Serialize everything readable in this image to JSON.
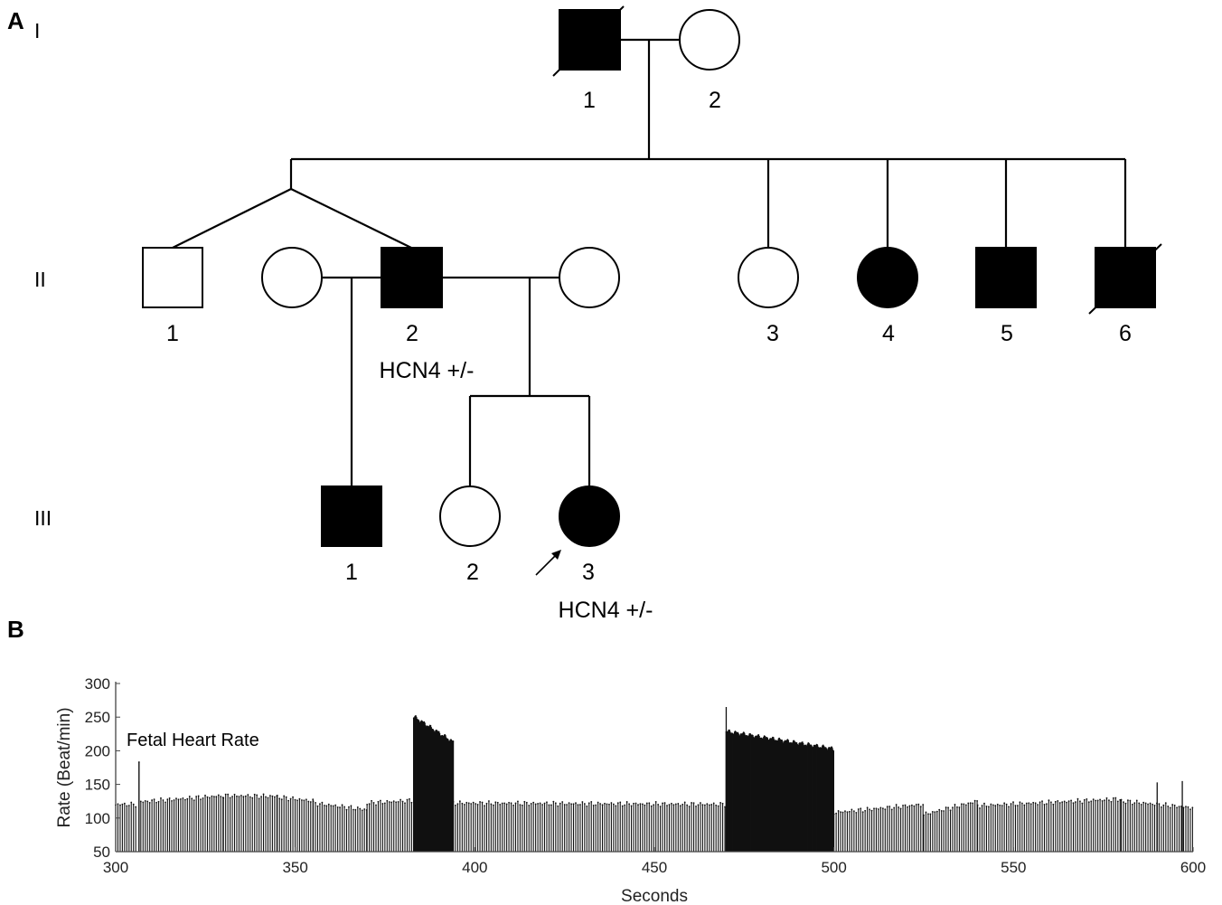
{
  "panels": {
    "a": "A",
    "b": "B"
  },
  "generations": [
    "I",
    "II",
    "III"
  ],
  "individuals": {
    "I1": {
      "label": "1",
      "sex": "male",
      "affected": true,
      "deceased": true
    },
    "I2": {
      "label": "2",
      "sex": "female",
      "affected": false,
      "deceased": false
    },
    "II1": {
      "label": "1",
      "sex": "male",
      "affected": false,
      "deceased": false
    },
    "IIspouse1": {
      "label": "",
      "sex": "female",
      "affected": false,
      "deceased": false
    },
    "II2": {
      "label": "2",
      "sex": "male",
      "affected": true,
      "deceased": false,
      "note": "HCN4 +/-"
    },
    "IIspouse2": {
      "label": "",
      "sex": "female",
      "affected": false,
      "deceased": false
    },
    "II3": {
      "label": "3",
      "sex": "female",
      "affected": false,
      "deceased": false
    },
    "II4": {
      "label": "4",
      "sex": "female",
      "affected": true,
      "deceased": false
    },
    "II5": {
      "label": "5",
      "sex": "male",
      "affected": true,
      "deceased": false
    },
    "II6": {
      "label": "6",
      "sex": "male",
      "affected": true,
      "deceased": true
    },
    "III1": {
      "label": "1",
      "sex": "male",
      "affected": true,
      "deceased": false
    },
    "III2": {
      "label": "2",
      "sex": "female",
      "affected": false,
      "deceased": false
    },
    "III3": {
      "label": "3",
      "sex": "female",
      "affected": true,
      "deceased": false,
      "proband": true,
      "note": "HCN4 +/-"
    }
  },
  "chart_data": {
    "type": "bar",
    "title": "Fetal Heart Rate",
    "xlabel": "Seconds",
    "ylabel": "Rate (Beat/min)",
    "xlim": [
      300,
      600
    ],
    "ylim": [
      50,
      300
    ],
    "xticks": [
      300,
      350,
      400,
      450,
      500,
      550,
      600
    ],
    "yticks": [
      50,
      100,
      150,
      200,
      250,
      300
    ],
    "series": [
      {
        "values_by_segment": [
          {
            "x": [
              300,
              306
            ],
            "y": [
              120,
              120
            ]
          },
          {
            "x": [
              306.5,
              306.5
            ],
            "y": [
              183,
              183
            ]
          },
          {
            "x": [
              307,
              315
            ],
            "y": [
              124,
              127
            ]
          },
          {
            "x": [
              315,
              330
            ],
            "y": [
              127,
              133
            ]
          },
          {
            "x": [
              330,
              345
            ],
            "y": [
              133,
              132
            ]
          },
          {
            "x": [
              345,
              355
            ],
            "y": [
              131,
              125
            ]
          },
          {
            "x": [
              355,
              370
            ],
            "y": [
              122,
              112
            ]
          },
          {
            "x": [
              370,
              383
            ],
            "y": [
              122,
              126
            ]
          },
          {
            "x": [
              383,
              394
            ],
            "y": [
              250,
              212
            ]
          },
          {
            "x": [
              394,
              470
            ],
            "y": [
              122,
              120
            ]
          },
          {
            "x": [
              470,
              500
            ],
            "y": [
              228,
              202
            ]
          },
          {
            "x": [
              500,
              525
            ],
            "y": [
              108,
              120
            ]
          },
          {
            "x": [
              525,
              540
            ],
            "y": [
              105,
              125
            ]
          },
          {
            "x": [
              540,
              580
            ],
            "y": [
              118,
              128
            ]
          },
          {
            "x": [
              580,
              600
            ],
            "y": [
              125,
              115
            ]
          }
        ]
      }
    ],
    "spikes": [
      {
        "x": 306.5,
        "y": 183
      },
      {
        "x": 470,
        "y": 265
      },
      {
        "x": 590,
        "y": 153
      },
      {
        "x": 597,
        "y": 155
      }
    ]
  }
}
